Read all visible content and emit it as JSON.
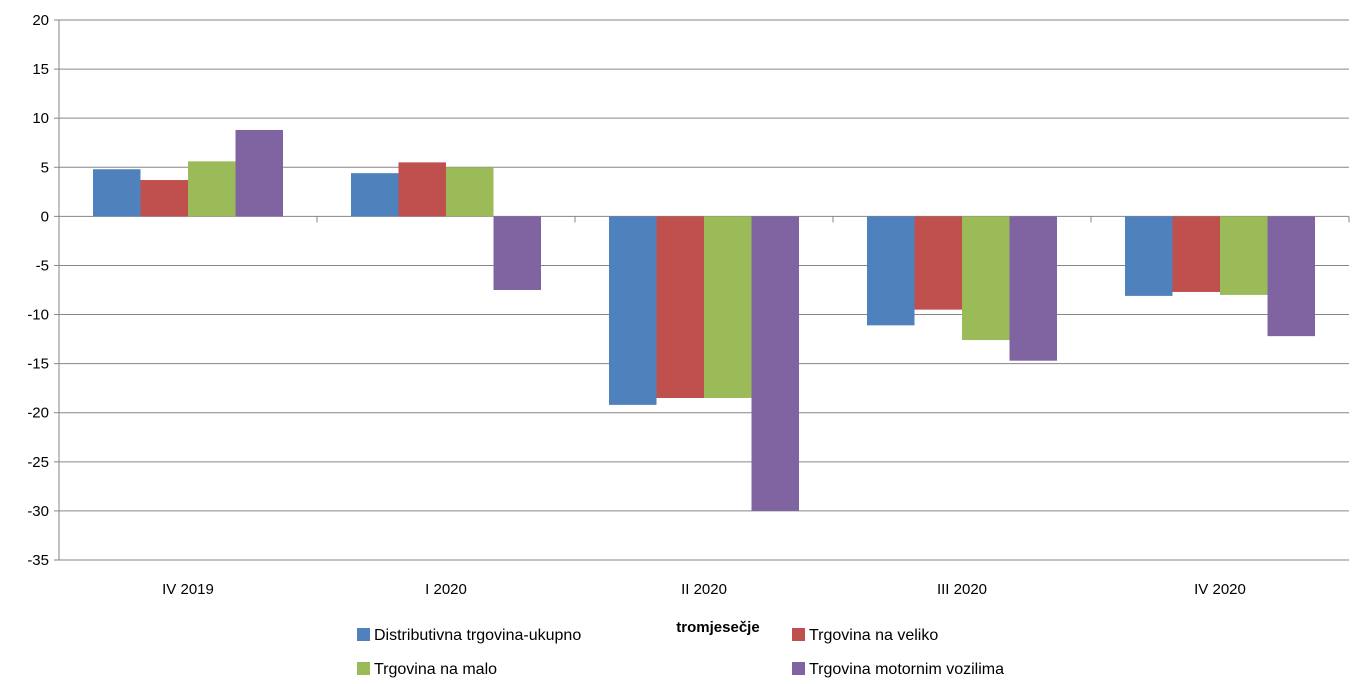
{
  "chart_data": {
    "type": "bar",
    "xlabel": "tromjesečje",
    "ylabel": "",
    "ylim": [
      -35,
      20
    ],
    "yticks": [
      20,
      15,
      10,
      5,
      0,
      -5,
      -10,
      -15,
      -20,
      -25,
      -30,
      -35
    ],
    "grid": true,
    "legend_position": "bottom",
    "categories": [
      "IV 2019",
      "I 2020",
      "II 2020",
      "III 2020",
      "IV 2020"
    ],
    "series": [
      {
        "name": "Distributivna trgovina-ukupno",
        "color": "#4F81BD",
        "values": [
          4.8,
          4.4,
          -19.2,
          -11.1,
          -8.1
        ]
      },
      {
        "name": "Trgovina na veliko",
        "color": "#C0504D",
        "values": [
          3.7,
          5.5,
          -18.5,
          -9.5,
          -7.7
        ]
      },
      {
        "name": "Trgovina na malo",
        "color": "#9BBB59",
        "values": [
          5.6,
          5.0,
          -18.5,
          -12.6,
          -8.0
        ]
      },
      {
        "name": "Trgovina motornim vozilima",
        "color": "#8064A2",
        "values": [
          8.8,
          -7.5,
          -30.0,
          -14.7,
          -12.2
        ]
      }
    ]
  }
}
